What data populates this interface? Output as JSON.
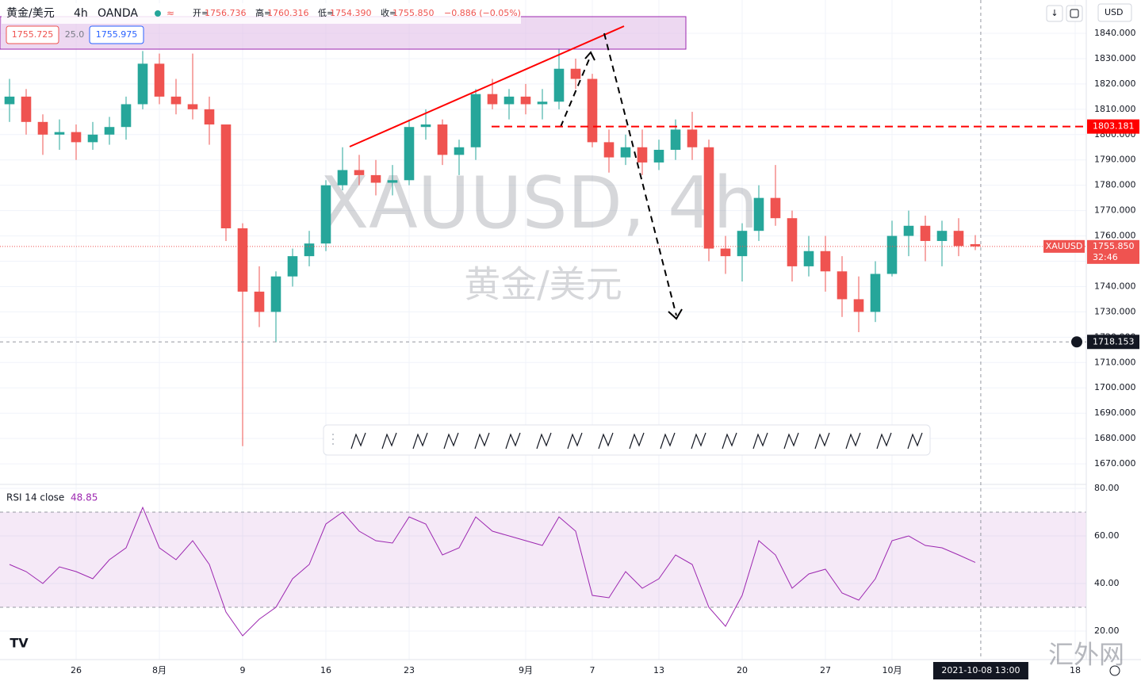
{
  "header": {
    "symbol": "黄金/美元",
    "interval": "4h",
    "source": "OANDA",
    "open_label": "开=",
    "open": "1756.736",
    "high_label": "高=",
    "high": "1760.316",
    "low_label": "低=",
    "low": "1754.390",
    "close_label": "收=",
    "close": "1755.850",
    "change": "−0.886 (−0.05%)",
    "bid": "1755.725",
    "spread": "25.0",
    "ask": "1755.975",
    "currency": "USD"
  },
  "watermark": "XAUUSD, 4h",
  "watermark_sub": "黄金/美元",
  "site_watermark": "汇外网",
  "chart_data": [
    {
      "type": "candlestick",
      "up_color": "#26a69a",
      "down_color": "#ef5350",
      "x": [
        -4,
        -3,
        -2,
        -1,
        0,
        1,
        2,
        3,
        4,
        5,
        6,
        7,
        8,
        9,
        10,
        11,
        12,
        13,
        14,
        15,
        16,
        17,
        18,
        19,
        20,
        21,
        22,
        23,
        24,
        25,
        26,
        27,
        28,
        29,
        30,
        31,
        32,
        33,
        34,
        35,
        36,
        37,
        38,
        39,
        40,
        41,
        42,
        43,
        44,
        45,
        46,
        47,
        48,
        49,
        50,
        51,
        52,
        53,
        54
      ],
      "open": [
        1812,
        1815,
        1805,
        1800,
        1801,
        1797,
        1800,
        1803,
        1812,
        1828,
        1815,
        1812,
        1810,
        1804,
        1763,
        1738,
        1730,
        1744,
        1752,
        1757,
        1780,
        1786,
        1784,
        1781,
        1782,
        1803,
        1804,
        1792,
        1795,
        1816,
        1812,
        1815,
        1812,
        1813,
        1826,
        1822,
        1797,
        1791,
        1795,
        1789,
        1794,
        1802,
        1795,
        1755,
        1752,
        1762,
        1775,
        1767,
        1748,
        1754,
        1746,
        1735,
        1730,
        1745,
        1760,
        1764,
        1758,
        1762,
        1756.736
      ],
      "high": [
        1822,
        1818,
        1808,
        1806,
        1804,
        1805,
        1807,
        1815,
        1833,
        1832,
        1822,
        1832,
        1815,
        1804,
        1765,
        1748,
        1746,
        1755,
        1762,
        1782,
        1795,
        1792,
        1790,
        1788,
        1806,
        1810,
        1806,
        1798,
        1818,
        1822,
        1818,
        1820,
        1818,
        1834,
        1830,
        1824,
        1802,
        1800,
        1802,
        1798,
        1806,
        1809,
        1798,
        1760,
        1765,
        1780,
        1788,
        1770,
        1760,
        1760,
        1752,
        1744,
        1750,
        1766,
        1770,
        1768,
        1766,
        1767,
        1760.316
      ],
      "low": [
        1805,
        1800,
        1792,
        1794,
        1790,
        1794,
        1796,
        1798,
        1810,
        1812,
        1808,
        1806,
        1796,
        1758,
        1677,
        1724,
        1718,
        1740,
        1748,
        1754,
        1778,
        1780,
        1776,
        1776,
        1780,
        1798,
        1788,
        1784,
        1790,
        1810,
        1806,
        1808,
        1806,
        1810,
        1818,
        1795,
        1785,
        1788,
        1784,
        1786,
        1790,
        1790,
        1750,
        1745,
        1742,
        1758,
        1764,
        1742,
        1744,
        1738,
        1728,
        1722,
        1726,
        1744,
        1752,
        1750,
        1748,
        1752,
        1754.39
      ],
      "close": [
        1815,
        1805,
        1800,
        1801,
        1797,
        1800,
        1803,
        1812,
        1828,
        1815,
        1812,
        1810,
        1804,
        1763,
        1738,
        1730,
        1744,
        1752,
        1757,
        1780,
        1786,
        1784,
        1781,
        1782,
        1803,
        1804,
        1792,
        1795,
        1816,
        1812,
        1815,
        1812,
        1813,
        1826,
        1822,
        1797,
        1791,
        1795,
        1789,
        1794,
        1802,
        1795,
        1755,
        1752,
        1762,
        1775,
        1767,
        1748,
        1754,
        1746,
        1735,
        1730,
        1745,
        1760,
        1764,
        1758,
        1762,
        1756,
        1755.85
      ],
      "xlim": [
        -4.571,
        60.667
      ],
      "xticks": [
        {
          "value": 0,
          "label": "26"
        },
        {
          "value": 5,
          "label": "8月"
        },
        {
          "value": 10,
          "label": "9"
        },
        {
          "value": 15,
          "label": "16"
        },
        {
          "value": 20,
          "label": "23"
        },
        {
          "value": 27,
          "label": "9月"
        },
        {
          "value": 31,
          "label": "7"
        },
        {
          "value": 35,
          "label": "13"
        },
        {
          "value": 40,
          "label": "20"
        },
        {
          "value": 45,
          "label": "27"
        },
        {
          "value": 49,
          "label": "10月"
        },
        {
          "value": 60,
          "label": "18"
        }
      ],
      "ylim": [
        1662.2,
        1853.15
      ],
      "yticks": [
        {
          "value": 1670,
          "label": "1670.000"
        },
        {
          "value": 1680,
          "label": "1680.000"
        },
        {
          "value": 1690,
          "label": "1690.000"
        },
        {
          "value": 1700,
          "label": "1700.000"
        },
        {
          "value": 1710,
          "label": "1710.000"
        },
        {
          "value": 1720,
          "label": "1720.000"
        },
        {
          "value": 1730,
          "label": "1730.000"
        },
        {
          "value": 1740,
          "label": "1740.000"
        },
        {
          "value": 1750,
          "label": "1750.000"
        },
        {
          "value": 1760,
          "label": "1760.000"
        },
        {
          "value": 1770,
          "label": "1770.000"
        },
        {
          "value": 1780,
          "label": "1780.000"
        },
        {
          "value": 1790,
          "label": "1790.000"
        },
        {
          "value": 1800,
          "label": "1800.000"
        },
        {
          "value": 1810,
          "label": "1810.000"
        },
        {
          "value": 1820,
          "label": "1820.000"
        },
        {
          "value": 1830,
          "label": "1830.000"
        },
        {
          "value": 1840,
          "label": "1840.000"
        }
      ],
      "hline": 1803.181,
      "last_price": {
        "value": 1755.85,
        "symbol": "XAUUSD",
        "label": "1755.850",
        "countdown": "32:46"
      },
      "crosshair": {
        "x": 54.33,
        "x_label": "2021-10-08 13:00",
        "y": 1718.153
      },
      "grid": true
    },
    {
      "type": "line",
      "title": "RSI 14 close",
      "color": "#9c27b0",
      "x": [
        -4,
        -3,
        -2,
        -1,
        0,
        1,
        2,
        3,
        4,
        5,
        6,
        7,
        8,
        9,
        10,
        11,
        12,
        13,
        14,
        15,
        16,
        17,
        18,
        19,
        20,
        21,
        22,
        23,
        24,
        25,
        26,
        27,
        28,
        29,
        30,
        31,
        32,
        33,
        34,
        35,
        36,
        37,
        38,
        39,
        40,
        41,
        42,
        43,
        44,
        45,
        46,
        47,
        48,
        49,
        50,
        51,
        52,
        53,
        54
      ],
      "values": [
        48,
        45,
        40,
        47,
        45,
        42,
        50,
        55,
        72,
        55,
        50,
        58,
        48,
        28,
        18,
        25,
        30,
        42,
        48,
        65,
        70,
        62,
        58,
        57,
        68,
        65,
        52,
        55,
        68,
        62,
        60,
        58,
        56,
        68,
        62,
        35,
        34,
        45,
        38,
        42,
        52,
        48,
        30,
        22,
        35,
        58,
        52,
        38,
        44,
        46,
        36,
        33,
        42,
        58,
        60,
        56,
        55,
        52,
        48.85
      ],
      "ylim": [
        8,
        81.67
      ],
      "yticks": [
        {
          "value": 20,
          "label": "20.00"
        },
        {
          "value": 40,
          "label": "40.00"
        },
        {
          "value": 60,
          "label": "60.00"
        },
        {
          "value": 80,
          "label": "80.00"
        }
      ],
      "bands": [
        70,
        30
      ]
    }
  ]
}
